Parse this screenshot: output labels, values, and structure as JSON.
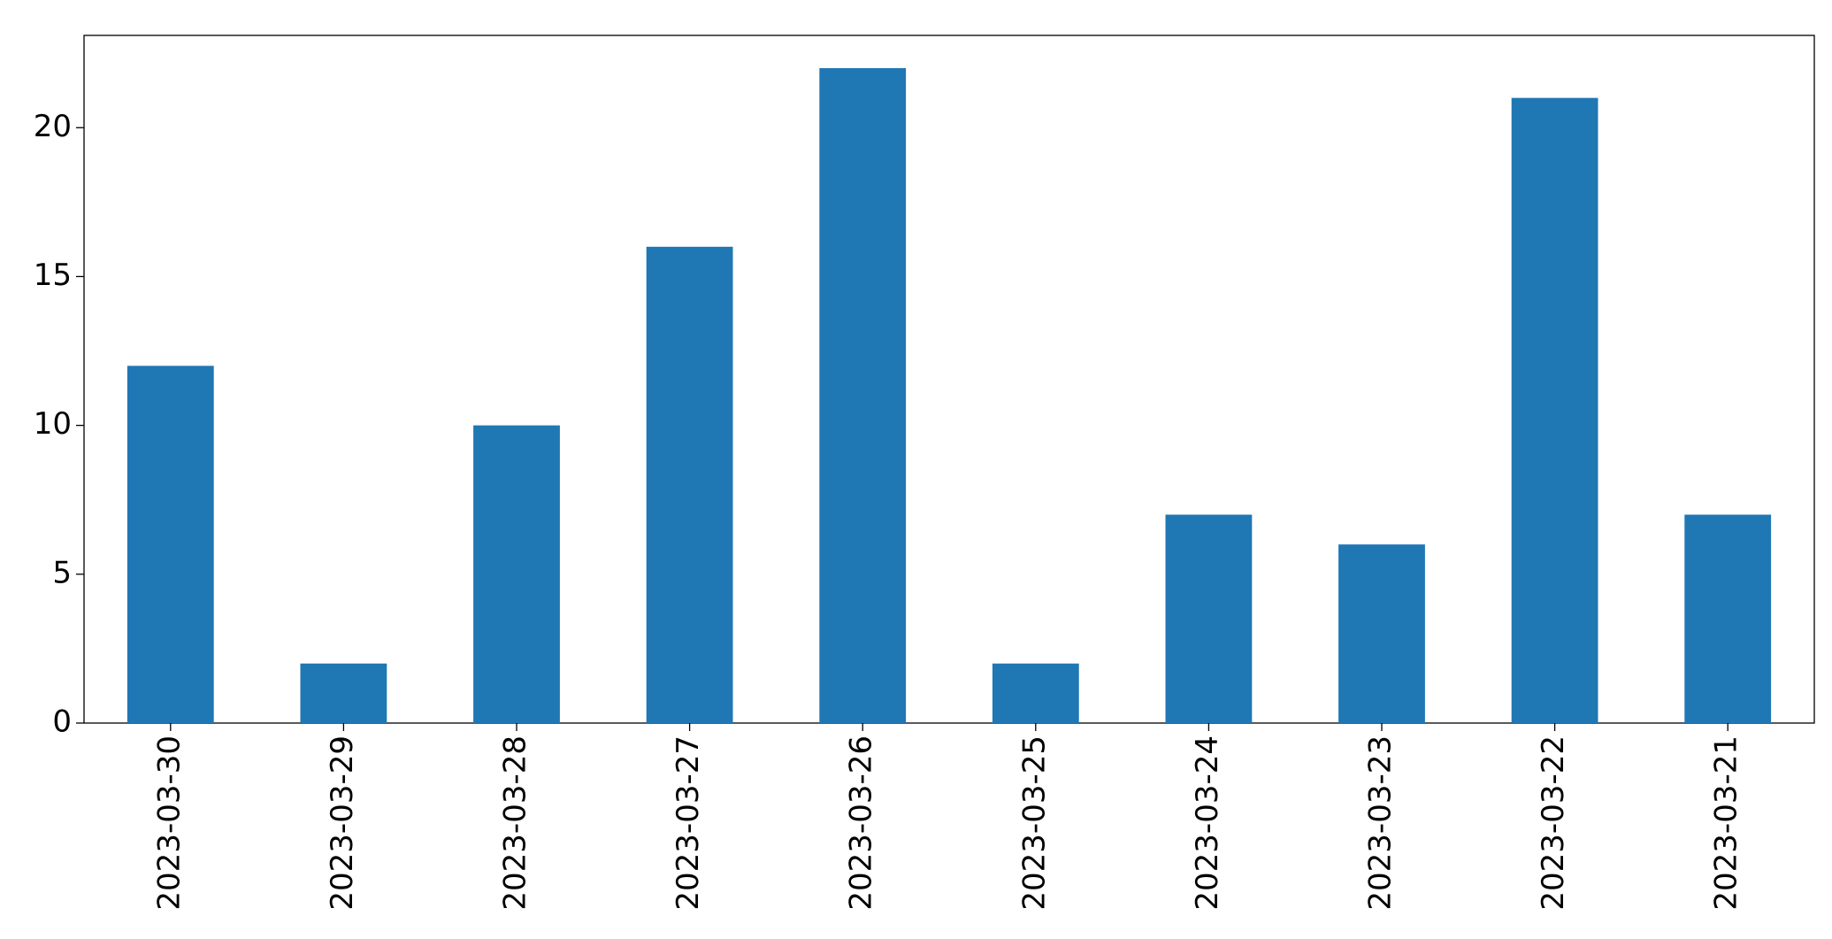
{
  "chart_data": {
    "type": "bar",
    "categories": [
      "2023-03-30",
      "2023-03-29",
      "2023-03-28",
      "2023-03-27",
      "2023-03-26",
      "2023-03-25",
      "2023-03-24",
      "2023-03-23",
      "2023-03-22",
      "2023-03-21"
    ],
    "values": [
      12,
      2,
      10,
      16,
      22,
      2,
      7,
      6,
      21,
      7
    ],
    "color": "#1f77b4",
    "ylim": [
      0,
      23.1
    ],
    "yticks": [
      0,
      5,
      10,
      15,
      20
    ],
    "grid": false
  }
}
